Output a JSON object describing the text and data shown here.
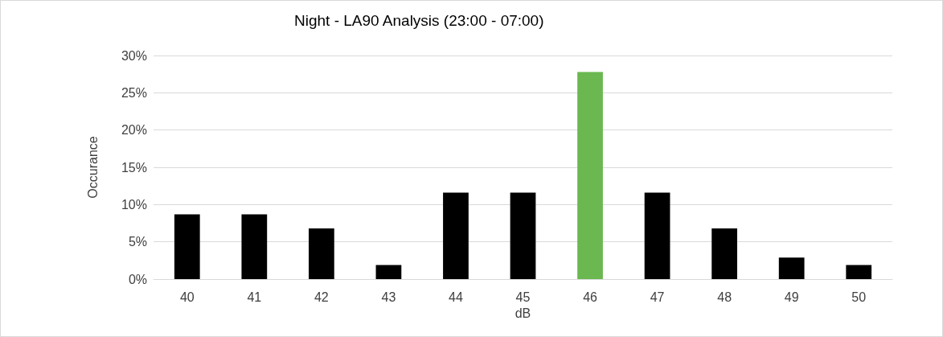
{
  "chart_data": {
    "type": "bar",
    "title": "Night - LA90 Analysis (23:00 - 07:00)",
    "xlabel": "dB",
    "ylabel": "Occurance",
    "categories": [
      "40",
      "41",
      "42",
      "43",
      "44",
      "45",
      "46",
      "47",
      "48",
      "49",
      "50"
    ],
    "values": [
      8.7,
      8.7,
      6.8,
      1.9,
      11.6,
      11.6,
      27.8,
      11.6,
      6.8,
      2.9,
      1.9
    ],
    "colors": [
      "#000000",
      "#000000",
      "#000000",
      "#000000",
      "#000000",
      "#000000",
      "#6ab84f",
      "#000000",
      "#000000",
      "#000000",
      "#000000"
    ],
    "ylim": [
      0,
      30
    ],
    "yticks": [
      {
        "value": 0,
        "label": "0%"
      },
      {
        "value": 5,
        "label": "5%"
      },
      {
        "value": 10,
        "label": "10%"
      },
      {
        "value": 15,
        "label": "15%"
      },
      {
        "value": 20,
        "label": "20%"
      },
      {
        "value": 25,
        "label": "25%"
      },
      {
        "value": 30,
        "label": "30%"
      }
    ],
    "grid": "y"
  }
}
